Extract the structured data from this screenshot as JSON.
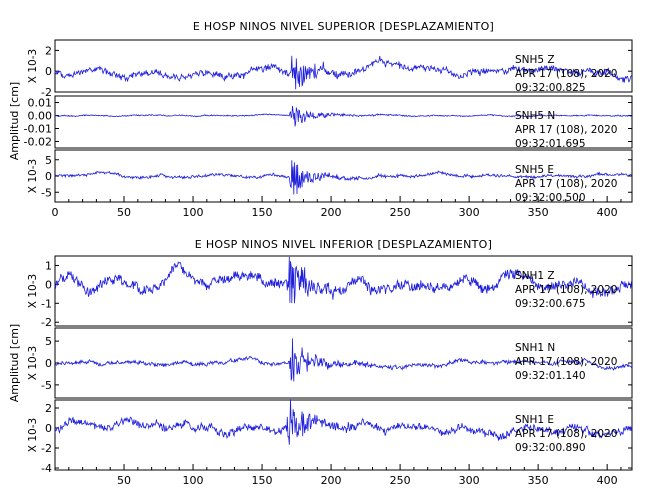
{
  "chart_data": [
    {
      "type": "line",
      "title": "E HOSP NINOS NIVEL SUPERIOR [DESPLAZAMIENTO]",
      "xlim": [
        0,
        418
      ],
      "xticks": [
        "0",
        "50",
        "100",
        "150",
        "200",
        "250",
        "300",
        "350",
        "400"
      ],
      "ylabel": "Amplitud [cm]",
      "panels": [
        {
          "station": "SNH5",
          "component": "Z",
          "date": "APR 17 (108), 2020",
          "time": "09:32:00.825",
          "scale_label": "X 10-3",
          "ylim": [
            -2,
            3
          ],
          "yticks": [
            "2",
            "0",
            "-2"
          ],
          "noise": 0.6,
          "event_amplitude": 2.2,
          "event_start": 170
        },
        {
          "station": "SNH5",
          "component": "N",
          "date": "APR 17 (108), 2020",
          "time": "09:32:01.695",
          "scale_label": "",
          "ylim": [
            -0.025,
            0.015
          ],
          "yticks": [
            "0.01",
            "0.00",
            "-0.01",
            "-0.02"
          ],
          "noise": 0.0008,
          "event_amplitude": 0.01,
          "event_start": 170
        },
        {
          "station": "SNH5",
          "component": "E",
          "date": "APR 17 (108), 2020",
          "time": "09:32:00.500",
          "scale_label": "X 10-3",
          "ylim": [
            -8,
            8
          ],
          "yticks": [
            "5",
            "0",
            "-5"
          ],
          "noise": 0.8,
          "event_amplitude": 6.5,
          "event_start": 170
        }
      ]
    },
    {
      "type": "line",
      "title": "E HOSP NINOS NIVEL INFERIOR [DESPLAZAMIENTO]",
      "xlim": [
        0,
        418
      ],
      "xticks": [
        "50",
        "100",
        "150",
        "200",
        "250",
        "300",
        "350",
        "400"
      ],
      "ylabel": "Amplitud [cm]",
      "panels": [
        {
          "station": "SNH1",
          "component": "Z",
          "date": "APR 17 (108), 2020",
          "time": "09:32:00.675",
          "scale_label": "X 10-3",
          "ylim": [
            -2.2,
            1.5
          ],
          "yticks": [
            "1",
            "0",
            "-1",
            "-2"
          ],
          "noise": 0.5,
          "event_amplitude": 1.6,
          "event_start": 168
        },
        {
          "station": "SNH1",
          "component": "N",
          "date": "APR 17 (108), 2020",
          "time": "09:32:01.140",
          "scale_label": "X 10-3",
          "ylim": [
            -8,
            8
          ],
          "yticks": [
            "5",
            "0",
            "-5"
          ],
          "noise": 0.8,
          "event_amplitude": 6.5,
          "event_start": 170
        },
        {
          "station": "SNH1",
          "component": "E",
          "date": "APR 17 (108), 2020",
          "time": "09:32:00.890",
          "scale_label": "X 10-3",
          "ylim": [
            -4.2,
            2.8
          ],
          "yticks": [
            "2",
            "0",
            "-2",
            "-4"
          ],
          "noise": 0.7,
          "event_amplitude": 3.2,
          "event_start": 168
        }
      ]
    }
  ]
}
